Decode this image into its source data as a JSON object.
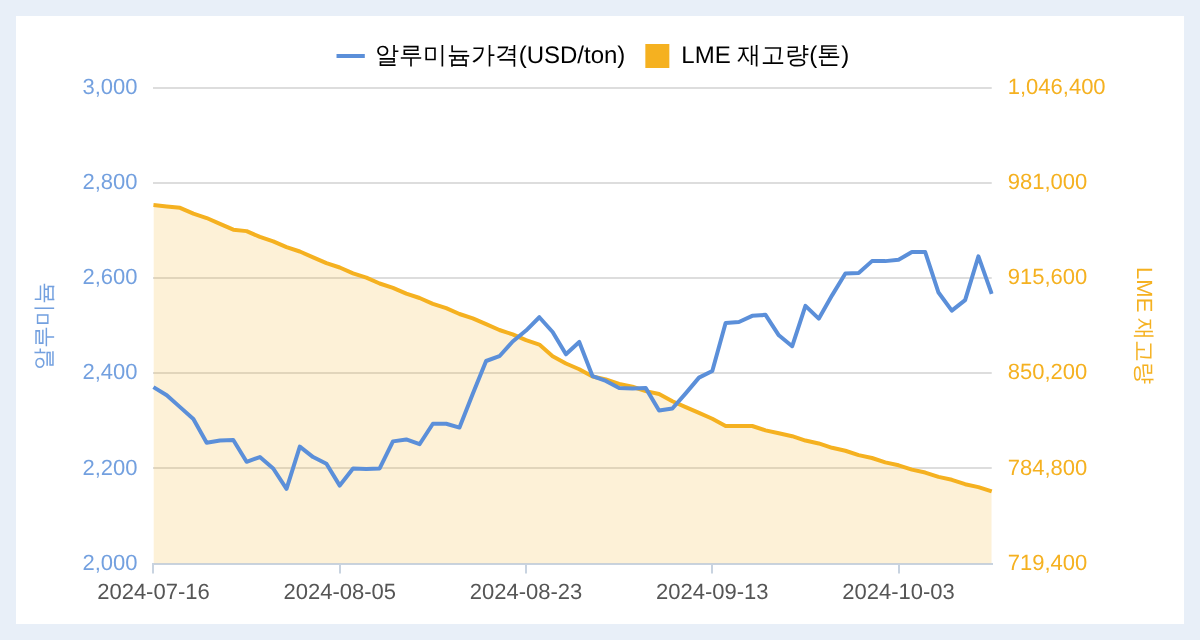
{
  "chart_data": {
    "type": "line",
    "ylabel": "알루미늄",
    "y2label": "LME 재고량",
    "categories": [
      "2024-07-16",
      null,
      null,
      null,
      null,
      null,
      null,
      null,
      null,
      null,
      null,
      null,
      null,
      null,
      "2024-08-05",
      null,
      null,
      null,
      null,
      null,
      null,
      null,
      null,
      null,
      null,
      null,
      null,
      null,
      "2024-08-23",
      null,
      null,
      null,
      null,
      null,
      null,
      null,
      null,
      null,
      null,
      null,
      null,
      null,
      "2024-09-13",
      null,
      null,
      null,
      null,
      null,
      null,
      null,
      null,
      null,
      null,
      null,
      null,
      null,
      "2024-10-03",
      null,
      null,
      null,
      null,
      null,
      null,
      null
    ],
    "series": [
      {
        "name": "알루미늄가격(USD/ton)",
        "color": "#5b8fd9",
        "values": [
          2371,
          2354,
          2329,
          2304,
          2254,
          2259,
          2260,
          2214,
          2224,
          2200,
          2157,
          2246,
          2224,
          2210,
          2164,
          2200,
          2199,
          2200,
          2257,
          2261,
          2251,
          2294,
          2294,
          2286,
          2357,
          2426,
          2436,
          2467,
          2490,
          2518,
          2487,
          2440,
          2466,
          2394,
          2384,
          2369,
          2368,
          2369,
          2322,
          2326,
          2358,
          2391,
          2405,
          2506,
          2508,
          2521,
          2523,
          2480,
          2457,
          2542,
          2515,
          2564,
          2610,
          2611,
          2636,
          2636,
          2639,
          2655,
          2655,
          2570,
          2532,
          2554,
          2646,
          2567
        ]
      },
      {
        "name": "LME 재고량(톤)",
        "type": "area",
        "axis": "y2",
        "color": "#f5b120",
        "values": [
          966000,
          965000,
          964000,
          960000,
          957000,
          953000,
          949000,
          948000,
          944000,
          941000,
          937000,
          934000,
          930000,
          926000,
          923000,
          919000,
          916000,
          912000,
          909000,
          905000,
          902000,
          898000,
          895000,
          891000,
          888000,
          884000,
          880000,
          877000,
          873000,
          870000,
          862000,
          857000,
          853000,
          848000,
          846000,
          843000,
          841000,
          838000,
          836000,
          831000,
          827000,
          823000,
          819000,
          814000,
          814000,
          814000,
          811000,
          809000,
          807000,
          804000,
          802000,
          799000,
          797000,
          794000,
          792000,
          789000,
          787000,
          784000,
          782000,
          779000,
          777000,
          774000,
          772000,
          769000
        ]
      }
    ],
    "ylim": [
      2000,
      3000
    ],
    "yticks": [
      {
        "value": 2000,
        "label": "2,000"
      },
      {
        "value": 2200,
        "label": "2,200"
      },
      {
        "value": 2400,
        "label": "2,400"
      },
      {
        "value": 2600,
        "label": "2,600"
      },
      {
        "value": 2800,
        "label": "2,800"
      },
      {
        "value": 3000,
        "label": "3,000"
      }
    ],
    "y2lim": [
      719400,
      1046400
    ],
    "y2ticks": [
      {
        "value": 719400,
        "label": "719,400"
      },
      {
        "value": 784800,
        "label": "784,800"
      },
      {
        "value": 850200,
        "label": "850,200"
      },
      {
        "value": 915600,
        "label": "915,600"
      },
      {
        "value": 981000,
        "label": "981,000"
      },
      {
        "value": 1046400,
        "label": "1,046,400"
      }
    ],
    "grid": "y",
    "legend": "top",
    "marker": "none",
    "line_style": "solid"
  }
}
